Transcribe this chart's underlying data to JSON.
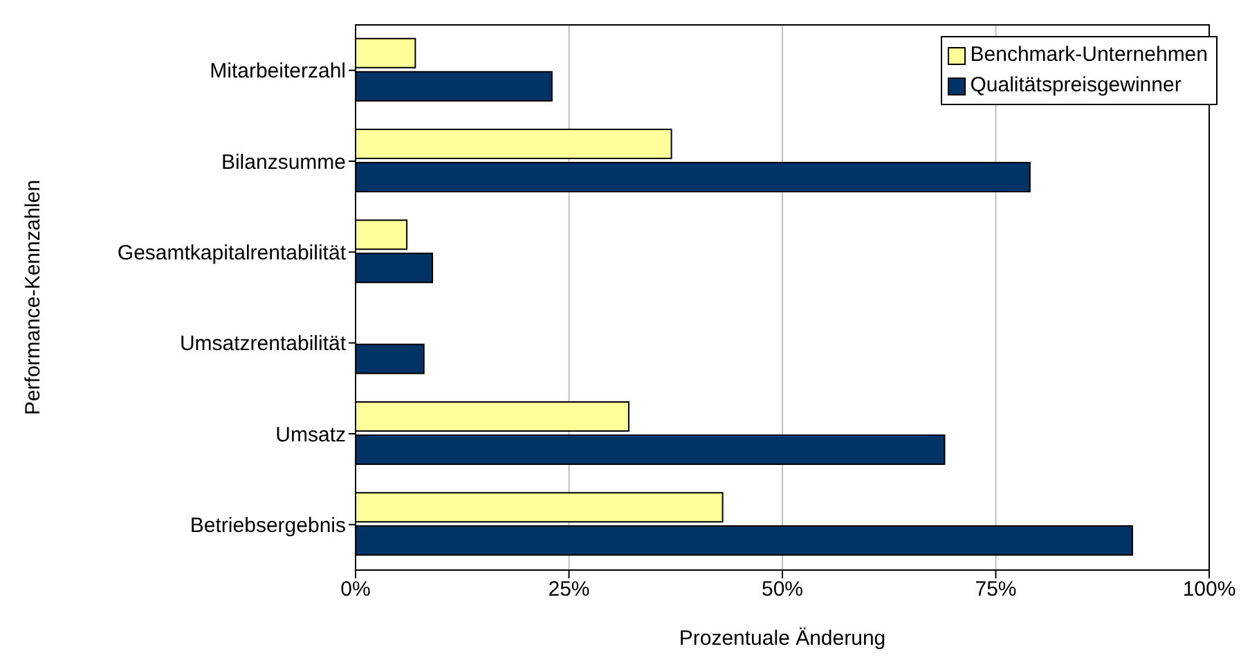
{
  "chart_data": {
    "type": "bar",
    "orientation": "horizontal",
    "xlabel": "Prozentuale Änderung",
    "ylabel": "Performance-Kennzahlen",
    "categories": [
      "Mitarbeiterzahl",
      "Bilanzsumme",
      "Gesamtkapitalrentabilität",
      "Umsatzrentabilität",
      "Umsatz",
      "Betriebsergebnis"
    ],
    "series": [
      {
        "name": "Benchmark-Unternehmen",
        "color": "#ffff99",
        "values": [
          7,
          37,
          6,
          0,
          32,
          43
        ]
      },
      {
        "name": "Qualitätspreisgewinner",
        "color": "#003366",
        "values": [
          23,
          79,
          9,
          8,
          69,
          91
        ]
      }
    ],
    "xlim": [
      0,
      100
    ],
    "xticks": [
      {
        "value": 0,
        "label": "0%"
      },
      {
        "value": 25,
        "label": "25%"
      },
      {
        "value": 50,
        "label": "50%"
      },
      {
        "value": 75,
        "label": "75%"
      },
      {
        "value": 100,
        "label": "100%"
      }
    ],
    "grid": "x",
    "legend": "top right"
  }
}
